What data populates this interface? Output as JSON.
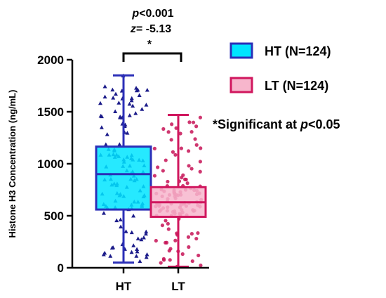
{
  "chart_data": {
    "type": "box",
    "ylabel": "Histone H3 Concentration (ng/mL)",
    "ylim": [
      0,
      2000
    ],
    "yticks": [
      0,
      500,
      1000,
      1500,
      2000
    ],
    "categories": [
      "HT",
      "LT"
    ],
    "series": [
      {
        "name": "HT (N=124)",
        "category": "HT",
        "n": 124,
        "min": 50,
        "q1": 560,
        "median": 900,
        "q3": 1165,
        "max": 1850,
        "fill": "#00e5ff",
        "stroke": "#2b2fb8",
        "point_color": "#1c1c8a"
      },
      {
        "name": "LT (N=124)",
        "category": "LT",
        "n": 124,
        "min": 10,
        "q1": 490,
        "median": 630,
        "q3": 775,
        "max": 1470,
        "fill": "#f7b6cc",
        "stroke": "#d0175e",
        "point_color": "#c71457"
      }
    ],
    "annotation": {
      "p_letter": "p",
      "p_rest": "<0.001",
      "z_letter": "z",
      "z_rest": "= -5.13",
      "star": "*"
    },
    "footnote": {
      "prefix": "*Significant at ",
      "p_letter": "p",
      "suffix": "<0.05"
    },
    "legend_placement": "right",
    "grid": false
  }
}
